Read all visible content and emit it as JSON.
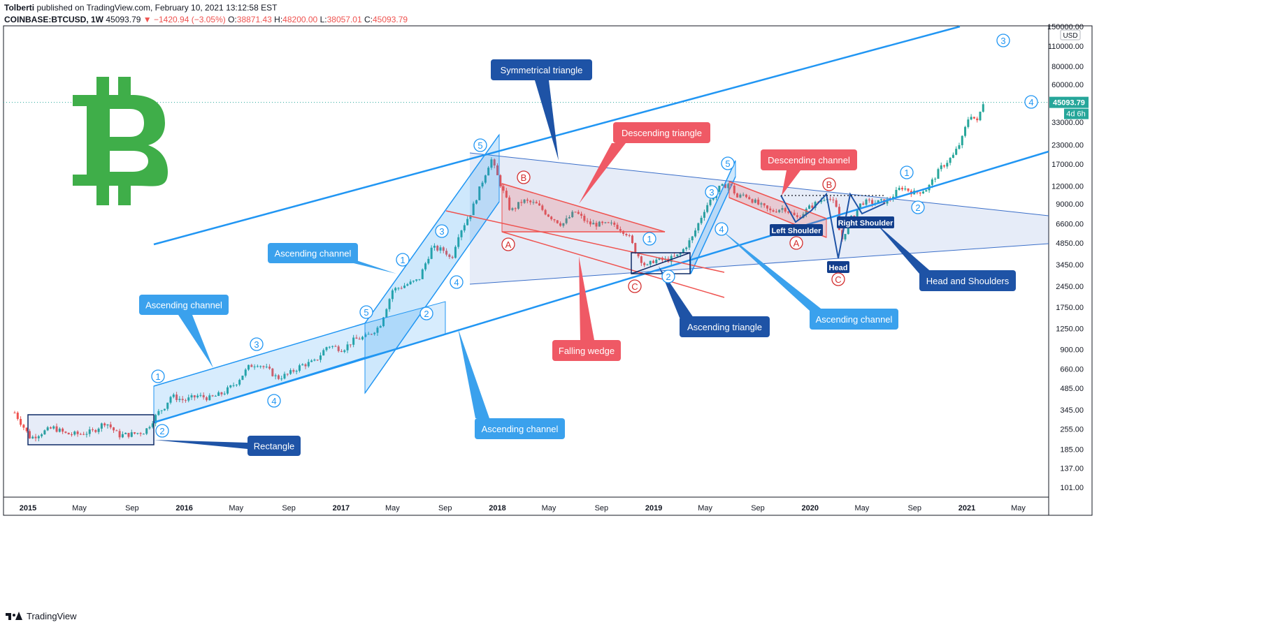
{
  "header": {
    "author": "Tolberti",
    "published": "published on TradingView.com, February 10, 2021 13:12:58 EST",
    "symbol": "COINBASE:BTCUSD, 1W",
    "last": "45093.79",
    "change_arrow": "▼",
    "change": "−1420.94 (−3.05%)",
    "ohlc": [
      {
        "k": "O:",
        "v": "38871.43"
      },
      {
        "k": "H:",
        "v": "48200.00"
      },
      {
        "k": "L:",
        "v": "38057.01"
      },
      {
        "k": "C:",
        "v": "45093.79"
      }
    ]
  },
  "footer": {
    "brand": "TradingView"
  },
  "colors": {
    "up": "#26a69a",
    "down": "#ef5350",
    "blue": "#2196f3",
    "navy": "#1e53a6",
    "red_label": "#ef5965",
    "bitcoin_green": "#3fae49",
    "last_price": "#26a69a"
  },
  "chart_data": {
    "type": "candlestick",
    "symbol": "COINBASE:BTCUSD",
    "interval": "1W",
    "y_scale": "log",
    "y_unit": "USD",
    "y_ticks": [
      101,
      137,
      185,
      255,
      345,
      485,
      660,
      900,
      1250,
      1750,
      2450,
      3450,
      4850,
      6600,
      9000,
      12000,
      17000,
      23000,
      33000,
      45000,
      60000,
      80000,
      110000,
      150000
    ],
    "y_tick_labels": [
      "101.00",
      "137.00",
      "185.00",
      "255.00",
      "345.00",
      "485.00",
      "660.00",
      "900.00",
      "1250.00",
      "1750.00",
      "2450.00",
      "3450.00",
      "4850.00",
      "6600.00",
      "9000.00",
      "12000.00",
      "17000.00",
      "23000.00",
      "33000.00",
      "45000.00",
      "60000.00",
      "80000.00",
      "110000.00",
      "150000.00"
    ],
    "x_ticks": [
      {
        "date": "2015-01-01",
        "label": "2015",
        "year": true
      },
      {
        "date": "2015-05-01",
        "label": "May",
        "year": false
      },
      {
        "date": "2015-09-01",
        "label": "Sep",
        "year": false
      },
      {
        "date": "2016-01-01",
        "label": "2016",
        "year": true
      },
      {
        "date": "2016-05-01",
        "label": "May",
        "year": false
      },
      {
        "date": "2016-09-01",
        "label": "Sep",
        "year": false
      },
      {
        "date": "2017-01-01",
        "label": "2017",
        "year": true
      },
      {
        "date": "2017-05-01",
        "label": "May",
        "year": false
      },
      {
        "date": "2017-09-01",
        "label": "Sep",
        "year": false
      },
      {
        "date": "2018-01-01",
        "label": "2018",
        "year": true
      },
      {
        "date": "2018-05-01",
        "label": "May",
        "year": false
      },
      {
        "date": "2018-09-01",
        "label": "Sep",
        "year": false
      },
      {
        "date": "2019-01-01",
        "label": "2019",
        "year": true
      },
      {
        "date": "2019-05-01",
        "label": "May",
        "year": false
      },
      {
        "date": "2019-09-01",
        "label": "Sep",
        "year": false
      },
      {
        "date": "2020-01-01",
        "label": "2020",
        "year": true
      },
      {
        "date": "2020-05-01",
        "label": "May",
        "year": false
      },
      {
        "date": "2020-09-01",
        "label": "Sep",
        "year": false
      },
      {
        "date": "2021-01-01",
        "label": "2021",
        "year": true
      },
      {
        "date": "2021-05-01",
        "label": "May",
        "year": false
      }
    ],
    "last_price_label": "45093.79",
    "countdown_label": "4d 6h",
    "close_series": [
      [
        "2014-12-01",
        330
      ],
      [
        "2015-01-07",
        220
      ],
      [
        "2015-02-01",
        240
      ],
      [
        "2015-03-01",
        260
      ],
      [
        "2015-04-01",
        235
      ],
      [
        "2015-05-01",
        235
      ],
      [
        "2015-06-01",
        245
      ],
      [
        "2015-07-01",
        285
      ],
      [
        "2015-08-01",
        230
      ],
      [
        "2015-09-01",
        235
      ],
      [
        "2015-10-01",
        245
      ],
      [
        "2015-11-01",
        330
      ],
      [
        "2015-11-15",
        360
      ],
      [
        "2015-12-01",
        430
      ],
      [
        "2016-01-01",
        400
      ],
      [
        "2016-02-01",
        430
      ],
      [
        "2016-03-01",
        415
      ],
      [
        "2016-04-01",
        450
      ],
      [
        "2016-05-01",
        530
      ],
      [
        "2016-06-01",
        690
      ],
      [
        "2016-06-20",
        720
      ],
      [
        "2016-07-15",
        650
      ],
      [
        "2016-08-05",
        570
      ],
      [
        "2016-09-01",
        610
      ],
      [
        "2016-10-01",
        700
      ],
      [
        "2016-11-01",
        740
      ],
      [
        "2016-12-01",
        960
      ],
      [
        "2017-01-05",
        900
      ],
      [
        "2017-02-01",
        1050
      ],
      [
        "2017-03-01",
        1100
      ],
      [
        "2017-04-01",
        1300
      ],
      [
        "2017-05-01",
        2300
      ],
      [
        "2017-06-01",
        2500
      ],
      [
        "2017-07-01",
        2700
      ],
      [
        "2017-08-01",
        4500
      ],
      [
        "2017-09-01",
        4300
      ],
      [
        "2017-09-15",
        3700
      ],
      [
        "2017-10-01",
        5500
      ],
      [
        "2017-11-01",
        8000
      ],
      [
        "2017-11-25",
        12500
      ],
      [
        "2017-12-17",
        18500
      ],
      [
        "2018-01-01",
        14000
      ],
      [
        "2018-02-01",
        8000
      ],
      [
        "2018-03-01",
        9500
      ],
      [
        "2018-04-01",
        9000
      ],
      [
        "2018-05-01",
        7500
      ],
      [
        "2018-06-01",
        6500
      ],
      [
        "2018-07-01",
        8000
      ],
      [
        "2018-08-01",
        6600
      ],
      [
        "2018-09-01",
        6500
      ],
      [
        "2018-10-01",
        6500
      ],
      [
        "2018-11-01",
        5600
      ],
      [
        "2018-11-20",
        4200
      ],
      [
        "2018-12-15",
        3300
      ],
      [
        "2019-01-01",
        3700
      ],
      [
        "2019-02-01",
        3700
      ],
      [
        "2019-03-01",
        4000
      ],
      [
        "2019-04-01",
        5300
      ],
      [
        "2019-05-01",
        8500
      ],
      [
        "2019-06-01",
        11500
      ],
      [
        "2019-06-26",
        12500
      ],
      [
        "2019-07-15",
        10000
      ],
      [
        "2019-08-01",
        10500
      ],
      [
        "2019-09-01",
        9000
      ],
      [
        "2019-10-01",
        8000
      ],
      [
        "2019-11-01",
        8500
      ],
      [
        "2019-12-01",
        7200
      ],
      [
        "2020-01-01",
        8600
      ],
      [
        "2020-02-10",
        10200
      ],
      [
        "2020-03-01",
        8800
      ],
      [
        "2020-03-13",
        4900
      ],
      [
        "2020-04-01",
        6800
      ],
      [
        "2020-05-01",
        9300
      ],
      [
        "2020-06-01",
        9200
      ],
      [
        "2020-07-01",
        9500
      ],
      [
        "2020-08-01",
        11800
      ],
      [
        "2020-09-01",
        10700
      ],
      [
        "2020-10-01",
        11500
      ],
      [
        "2020-11-01",
        16000
      ],
      [
        "2020-12-01",
        19500
      ],
      [
        "2020-12-20",
        25000
      ],
      [
        "2021-01-08",
        38000
      ],
      [
        "2021-01-25",
        33000
      ],
      [
        "2021-02-08",
        45093.79
      ]
    ]
  },
  "annotations": {
    "labels": [
      {
        "text": "Rectangle",
        "style": "navy"
      },
      {
        "text": "Ascending channel",
        "style": "blue"
      },
      {
        "text": "Ascending channel",
        "style": "blue"
      },
      {
        "text": "Ascending channel",
        "style": "blue"
      },
      {
        "text": "Symmetrical triangle",
        "style": "navy"
      },
      {
        "text": "Descending triangle",
        "style": "red"
      },
      {
        "text": "Falling wedge",
        "style": "red"
      },
      {
        "text": "Ascending triangle",
        "style": "navy"
      },
      {
        "text": "Descending channel",
        "style": "red"
      },
      {
        "text": "Ascending channel",
        "style": "blue"
      },
      {
        "text": "Head and Shoulders",
        "style": "navy"
      }
    ],
    "small_labels": [
      "Left Shoulder",
      "Right Shoulder",
      "Head"
    ],
    "wave_markers": [
      "1",
      "2",
      "3",
      "4",
      "5",
      "1",
      "2",
      "3",
      "4",
      "5",
      "B",
      "A",
      "1",
      "C",
      "2",
      "3",
      "4",
      "5",
      "B",
      "A",
      "C",
      "1",
      "2",
      "3",
      "4"
    ]
  }
}
